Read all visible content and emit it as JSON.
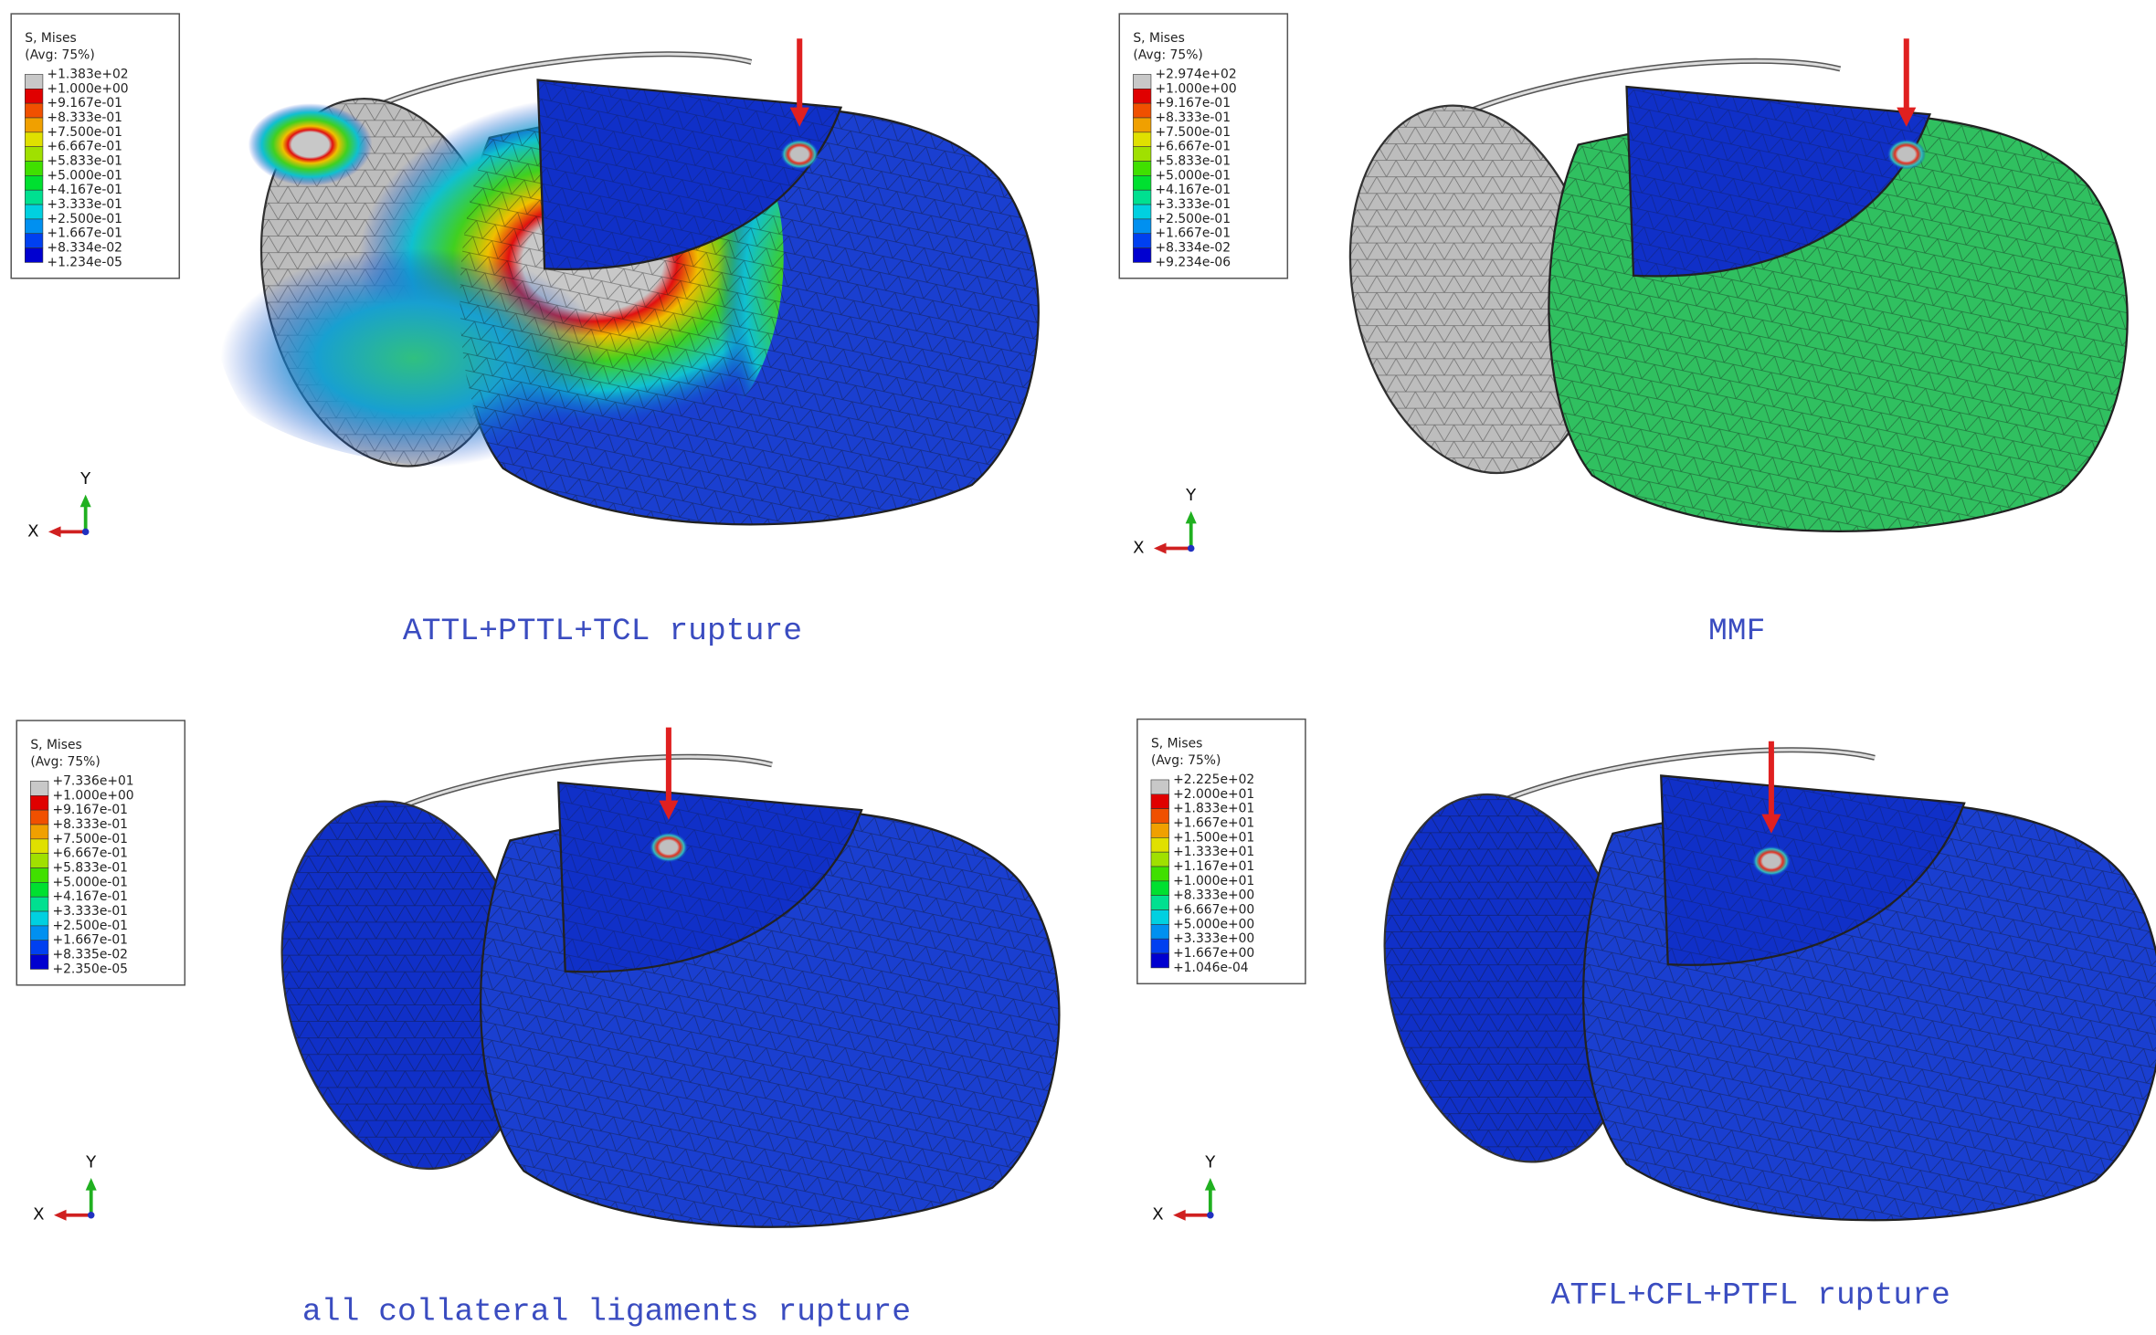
{
  "panels": [
    {
      "legend": {
        "title": "S, Mises",
        "subtitle": "(Avg: 75%)",
        "labels": [
          "+1.383e+02",
          "+1.000e+00",
          "+9.167e-01",
          "+8.333e-01",
          "+7.500e-01",
          "+6.667e-01",
          "+5.833e-01",
          "+5.000e-01",
          "+4.167e-01",
          "+3.333e-01",
          "+2.500e-01",
          "+1.667e-01",
          "+8.334e-02",
          "+1.234e-05"
        ]
      },
      "axes": {
        "y": "Y",
        "x": "X"
      },
      "caption": "ATTL+PTTL+TCL rupture"
    },
    {
      "legend": {
        "title": "S, Mises",
        "subtitle": "(Avg: 75%)",
        "labels": [
          "+2.974e+02",
          "+1.000e+00",
          "+9.167e-01",
          "+8.333e-01",
          "+7.500e-01",
          "+6.667e-01",
          "+5.833e-01",
          "+5.000e-01",
          "+4.167e-01",
          "+3.333e-01",
          "+2.500e-01",
          "+1.667e-01",
          "+8.334e-02",
          "+9.234e-06"
        ]
      },
      "axes": {
        "y": "Y",
        "x": "X"
      },
      "caption": "MMF"
    },
    {
      "legend": {
        "title": "S, Mises",
        "subtitle": "(Avg: 75%)",
        "labels": [
          "+7.336e+01",
          "+1.000e+00",
          "+9.167e-01",
          "+8.333e-01",
          "+7.500e-01",
          "+6.667e-01",
          "+5.833e-01",
          "+5.000e-01",
          "+4.167e-01",
          "+3.333e-01",
          "+2.500e-01",
          "+1.667e-01",
          "+8.335e-02",
          "+2.350e-05"
        ]
      },
      "axes": {
        "y": "Y",
        "x": "X"
      },
      "caption": "all collateral ligaments rupture"
    },
    {
      "legend": {
        "title": "S, Mises",
        "subtitle": "(Avg: 75%)",
        "labels": [
          "+2.225e+02",
          "+2.000e+01",
          "+1.833e+01",
          "+1.667e+01",
          "+1.500e+01",
          "+1.333e+01",
          "+1.167e+01",
          "+1.000e+01",
          "+8.333e+00",
          "+6.667e+00",
          "+5.000e+00",
          "+3.333e+00",
          "+1.667e+00",
          "+1.046e-04"
        ]
      },
      "axes": {
        "y": "Y",
        "x": "X"
      },
      "caption": "ATFL+CFL+PTFL rupture"
    }
  ]
}
